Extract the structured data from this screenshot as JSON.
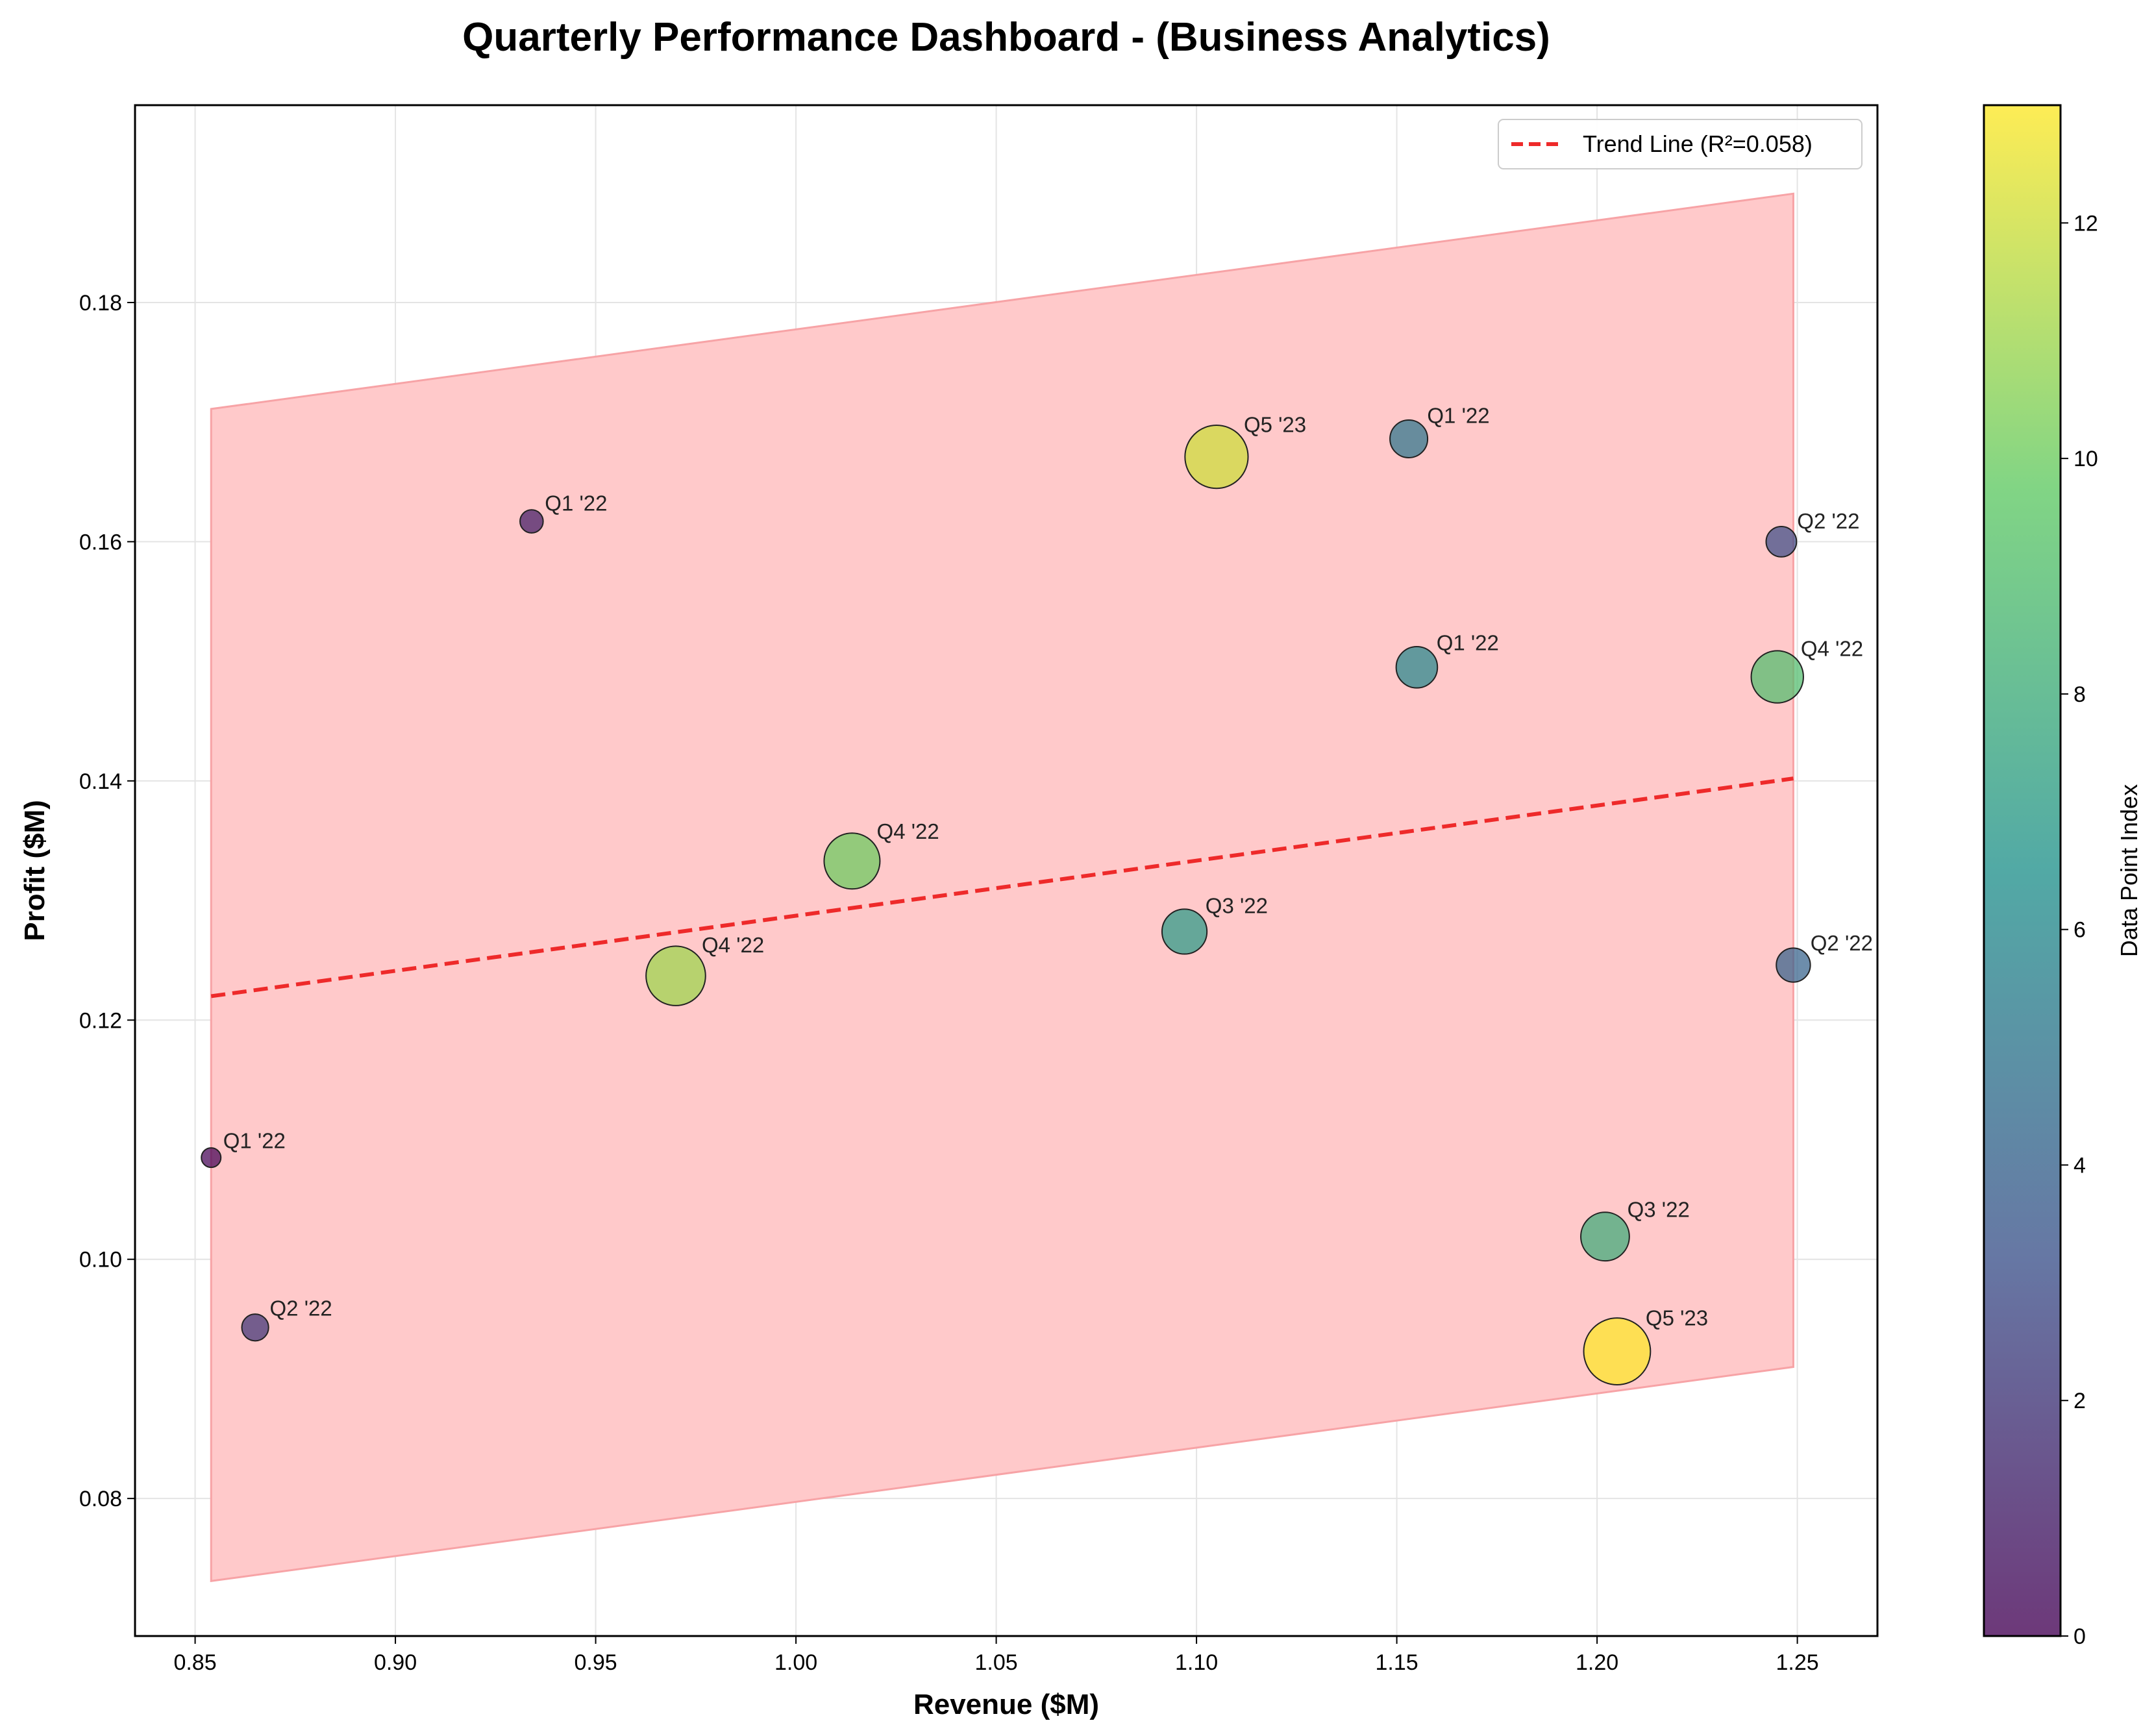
{
  "chart_data": {
    "type": "scatter",
    "title": "Quarterly Performance Dashboard - (Business Analytics)",
    "xlabel": "Revenue ($M)",
    "ylabel": "Profit ($M)",
    "xlim": [
      0.835,
      1.27
    ],
    "ylim": [
      0.0685,
      0.1965
    ],
    "xticks": [
      0.85,
      0.9,
      0.95,
      1.0,
      1.05,
      1.1,
      1.15,
      1.2,
      1.25
    ],
    "xtick_labels": [
      "0.85",
      "0.90",
      "0.95",
      "1.00",
      "1.05",
      "1.10",
      "1.15",
      "1.20",
      "1.25"
    ],
    "yticks": [
      0.08,
      0.1,
      0.12,
      0.14,
      0.16,
      0.18
    ],
    "ytick_labels": [
      "0.08",
      "0.10",
      "0.12",
      "0.14",
      "0.16",
      "0.18"
    ],
    "grid": true,
    "points": [
      {
        "label": "Q1 '22",
        "x": 0.854,
        "y": 0.1085,
        "c": 0
      },
      {
        "label": "Q1 '22",
        "x": 0.934,
        "y": 0.1617,
        "c": 1
      },
      {
        "label": "Q2 '22",
        "x": 0.865,
        "y": 0.0943,
        "c": 2
      },
      {
        "label": "Q2 '22",
        "x": 1.246,
        "y": 0.16,
        "c": 3
      },
      {
        "label": "Q2 '22",
        "x": 1.249,
        "y": 0.1246,
        "c": 4
      },
      {
        "label": "Q1 '22",
        "x": 1.153,
        "y": 0.1686,
        "c": 5
      },
      {
        "label": "Q1 '22",
        "x": 1.155,
        "y": 0.1495,
        "c": 6
      },
      {
        "label": "Q3 '22",
        "x": 1.097,
        "y": 0.1274,
        "c": 7
      },
      {
        "label": "Q3 '22",
        "x": 1.202,
        "y": 0.1019,
        "c": 8
      },
      {
        "label": "Q4 '22",
        "x": 1.245,
        "y": 0.1487,
        "c": 9
      },
      {
        "label": "Q4 '22",
        "x": 1.014,
        "y": 0.1333,
        "c": 10
      },
      {
        "label": "Q4 '22",
        "x": 0.97,
        "y": 0.1237,
        "c": 11
      },
      {
        "label": "Q5 '23",
        "x": 1.105,
        "y": 0.1671,
        "c": 12
      },
      {
        "label": "Q5 '23",
        "x": 1.205,
        "y": 0.0923,
        "c": 13
      }
    ],
    "trend_line": {
      "x": [
        0.854,
        1.249
      ],
      "y": [
        0.122,
        0.1402
      ]
    },
    "confidence_band": {
      "x": [
        0.854,
        1.249
      ],
      "upper": [
        0.1711,
        0.1891
      ],
      "lower": [
        0.0731,
        0.091
      ]
    },
    "legend": {
      "entries": [
        "Trend Line (R²=0.058)"
      ],
      "placement": "upper-right"
    },
    "colorbar": {
      "label": "Data Point Index",
      "range": [
        0,
        13
      ],
      "ticks": [
        0,
        2,
        4,
        6,
        8,
        10,
        12
      ],
      "tick_labels": [
        "0",
        "2",
        "4",
        "6",
        "8",
        "10",
        "12"
      ],
      "colormap": "viridis"
    },
    "colors": {
      "trend": "#ee2a2a",
      "band": "#ffc9ca",
      "band_edge": "#f7a3a6",
      "grid": "#e4e4e4"
    }
  }
}
